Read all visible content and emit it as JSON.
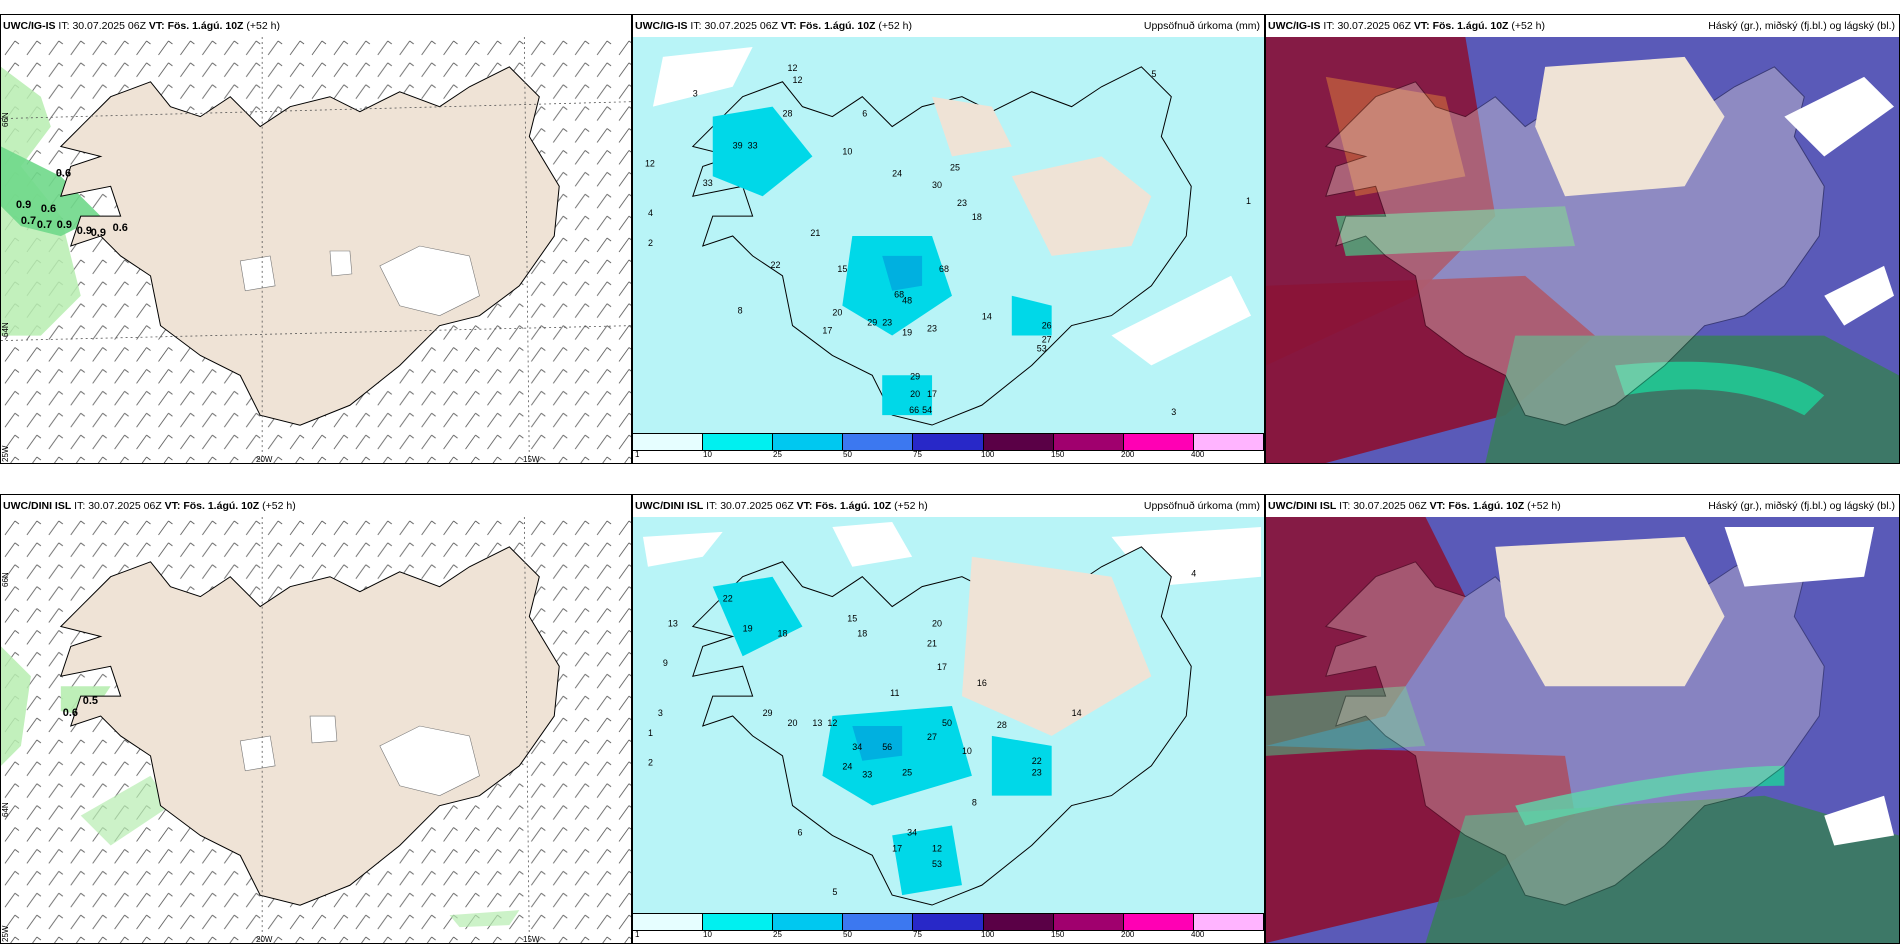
{
  "panels": [
    {
      "model": "UWC/IG-IS",
      "it_label": "IT:",
      "it": "30.07.2025 06Z",
      "vt_label": "VT:",
      "vt": "Fös. 1.ágú. 10Z",
      "lead": "(+52 h)",
      "title_right": ""
    },
    {
      "model": "UWC/IG-IS",
      "it_label": "IT:",
      "it": "30.07.2025 06Z",
      "vt_label": "VT:",
      "vt": "Fös. 1.ágú. 10Z",
      "lead": "(+52 h)",
      "title_right": "Uppsöfnuð úrkoma (mm)"
    },
    {
      "model": "UWC/IG-IS",
      "it_label": "IT:",
      "it": "30.07.2025 06Z",
      "vt_label": "VT:",
      "vt": "Fös. 1.ágú. 10Z",
      "lead": "(+52 h)",
      "title_right": "Háský (gr.), miðský (fj.bl.) og lágský (bl.)"
    },
    {
      "model": "UWC/DINI ISL",
      "it_label": "IT:",
      "it": "30.07.2025 06Z",
      "vt_label": "VT:",
      "vt": "Fös. 1.ágú. 10Z",
      "lead": "(+52 h)",
      "title_right": ""
    },
    {
      "model": "UWC/DINI ISL",
      "it_label": "IT:",
      "it": "30.07.2025 06Z",
      "vt_label": "VT:",
      "vt": "Fös. 1.ágú. 10Z",
      "lead": "(+52 h)",
      "title_right": "Uppsöfnuð úrkoma (mm)"
    },
    {
      "model": "UWC/DINI ISL",
      "it_label": "IT:",
      "it": "30.07.2025 06Z",
      "vt_label": "VT:",
      "vt": "Fös. 1.ágú. 10Z",
      "lead": "(+52 h)",
      "title_right": "Háský (gr.), miðský (fj.bl.) og lágský (bl.)"
    }
  ],
  "axis_labels": {
    "lat_top": "66N",
    "lat_bottom": "64N",
    "lon_left": "25W",
    "lon_mid": "20W",
    "lon_right": "15W"
  },
  "precip_colorbar": {
    "ticks": [
      "1",
      "10",
      "25",
      "50",
      "75",
      "100",
      "150",
      "200",
      "400"
    ],
    "colors": [
      "#e6feff",
      "#00f0f0",
      "#00c8f0",
      "#3c78f0",
      "#2828c8",
      "#5a0046",
      "#a0006e",
      "#ff00b4",
      "#ffb4ff"
    ]
  },
  "wind_panel_values": {
    "top": [
      "0.6",
      "0.9",
      "0.6",
      "0.7",
      "0.7",
      "0.9",
      "0.9",
      "0.9",
      "0.6"
    ],
    "bottom": [
      "0.5",
      "0.6"
    ]
  },
  "precip_values": {
    "top": [
      "12",
      "12",
      "28",
      "39",
      "33",
      "33",
      "24",
      "30",
      "23",
      "18",
      "68",
      "68",
      "48",
      "29",
      "23",
      "15",
      "21",
      "22",
      "20",
      "25",
      "26",
      "27",
      "19",
      "17",
      "14",
      "23",
      "29",
      "20",
      "17",
      "54",
      "66",
      "53",
      "5",
      "2",
      "3",
      "4",
      "8",
      "10",
      "12",
      "6",
      "1",
      "3"
    ],
    "bottom": [
      "13",
      "22",
      "19",
      "18",
      "15",
      "18",
      "21",
      "20",
      "17",
      "29",
      "20",
      "13",
      "12",
      "50",
      "27",
      "34",
      "56",
      "25",
      "28",
      "22",
      "23",
      "33",
      "24",
      "34",
      "17",
      "12",
      "53",
      "16",
      "10",
      "5",
      "2",
      "3",
      "6",
      "8",
      "9",
      "11",
      "4",
      "1",
      "14"
    ]
  },
  "colors": {
    "land": "#efe3d6",
    "coast": "#000000",
    "sea_precip": "#b8f4f7",
    "precip_mid": "#00d8e8",
    "precip_high": "#00b0e0",
    "green_light": "#b7edb0",
    "cloud_high": "#4c9a6c",
    "cloud_mid": "#5a5ab8",
    "cloud_low": "#8a1438"
  }
}
